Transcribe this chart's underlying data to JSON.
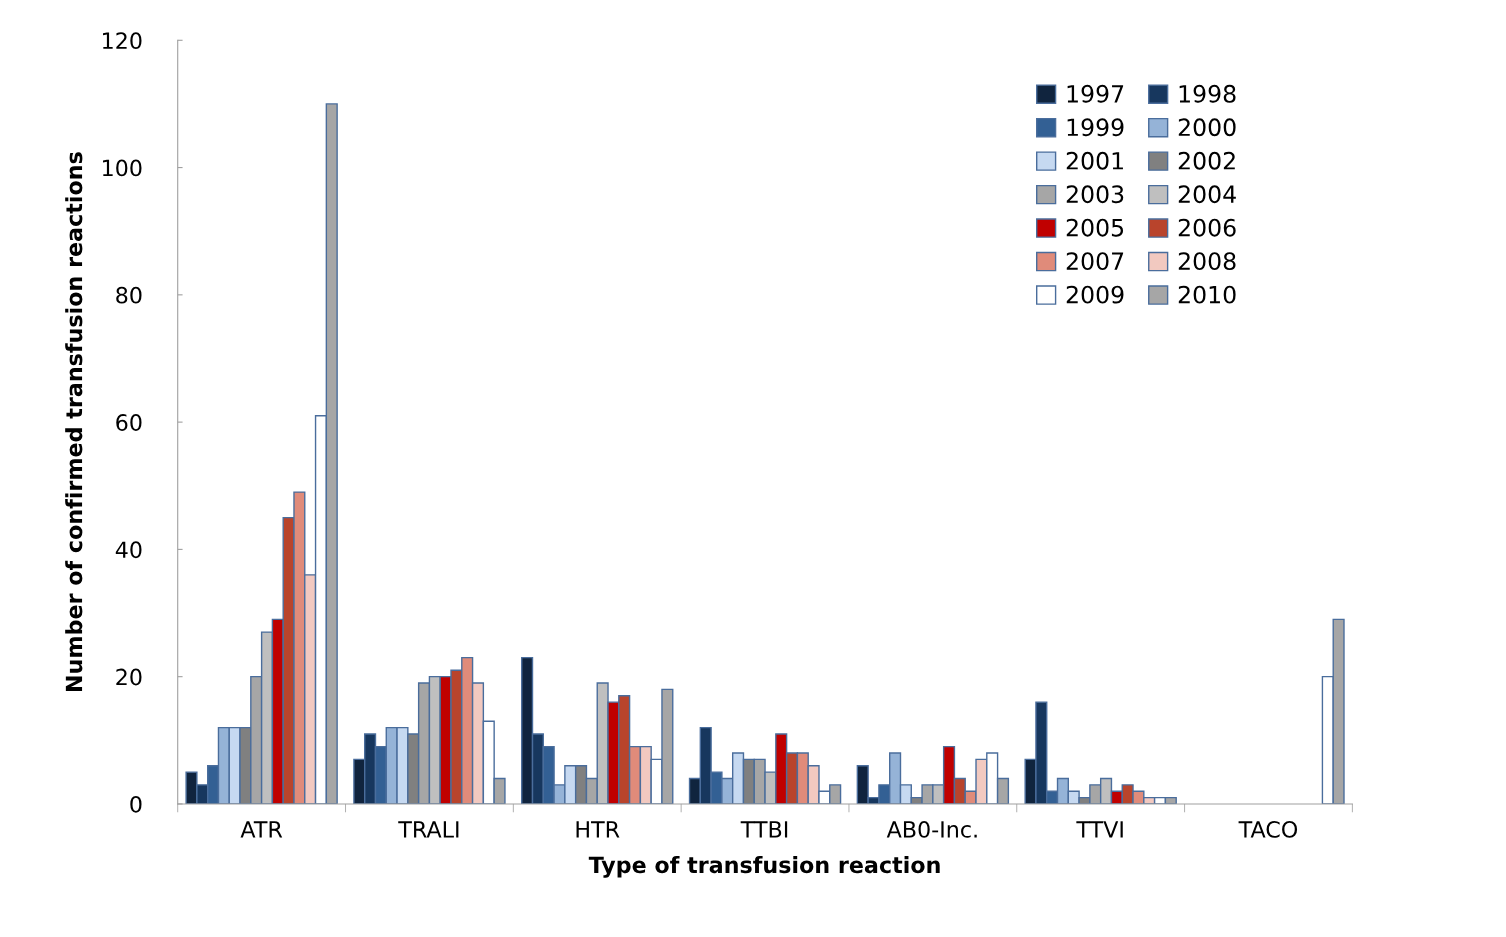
{
  "chart_data": {
    "type": "bar",
    "xlabel": "Type of transfusion reaction",
    "ylabel": "Number of confirmed transfusion reactions",
    "categories": [
      "ATR",
      "TRALI",
      "HTR",
      "TTBI",
      "AB0-Inc.",
      "TTVI",
      "TACO"
    ],
    "ylim": [
      0,
      120
    ],
    "yticks": [
      0,
      20,
      40,
      60,
      80,
      100,
      120
    ],
    "grid": false,
    "legend": "top right",
    "series": [
      {
        "name": "1997",
        "color": "#10243e",
        "values": [
          5,
          7,
          23,
          4,
          6,
          7,
          0
        ]
      },
      {
        "name": "1998",
        "color": "#17375e",
        "values": [
          3,
          11,
          11,
          12,
          1,
          16,
          0
        ]
      },
      {
        "name": "1999",
        "color": "#336094",
        "values": [
          6,
          9,
          9,
          5,
          3,
          2,
          0
        ]
      },
      {
        "name": "2000",
        "color": "#95b3d7",
        "values": [
          12,
          12,
          3,
          4,
          8,
          4,
          0
        ]
      },
      {
        "name": "2001",
        "color": "#c6d9f1",
        "values": [
          12,
          12,
          6,
          8,
          3,
          2,
          0
        ]
      },
      {
        "name": "2002",
        "color": "#808080",
        "values": [
          12,
          11,
          6,
          7,
          1,
          1,
          0
        ]
      },
      {
        "name": "2003",
        "color": "#a6a6a6",
        "values": [
          20,
          19,
          4,
          7,
          3,
          3,
          0
        ]
      },
      {
        "name": "2004",
        "color": "#bfbfbf",
        "values": [
          27,
          20,
          19,
          5,
          3,
          4,
          0
        ]
      },
      {
        "name": "2005",
        "color": "#c00000",
        "values": [
          29,
          20,
          16,
          11,
          9,
          2,
          0
        ]
      },
      {
        "name": "2006",
        "color": "#b9442c",
        "values": [
          45,
          21,
          17,
          8,
          4,
          3,
          0
        ]
      },
      {
        "name": "2007",
        "color": "#e08b7a",
        "values": [
          49,
          23,
          9,
          8,
          2,
          2,
          0
        ]
      },
      {
        "name": "2008",
        "color": "#f2c9c0",
        "values": [
          36,
          19,
          9,
          6,
          7,
          1,
          0
        ]
      },
      {
        "name": "2009",
        "color": "#ffffff",
        "values": [
          61,
          13,
          7,
          2,
          8,
          1,
          20
        ]
      },
      {
        "name": "2010",
        "color": "#a6a6a6",
        "values": [
          110,
          4,
          18,
          3,
          4,
          1,
          29
        ]
      }
    ]
  }
}
